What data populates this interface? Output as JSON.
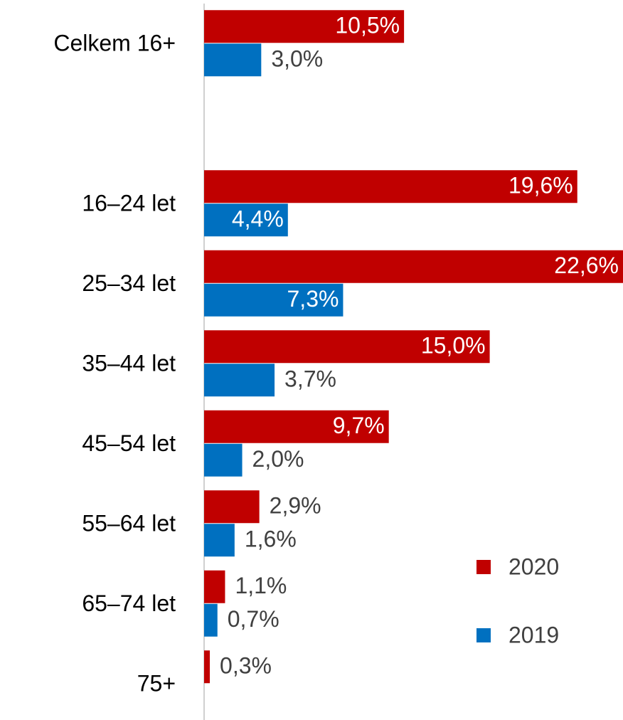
{
  "chart_data": {
    "type": "hbar",
    "categories": [
      "Celkem 16+",
      null,
      "16–24 let",
      "25–34 let",
      "35–44 let",
      "45–54 let",
      "55–64 let",
      "65–74 let",
      "75+"
    ],
    "series": [
      {
        "name": "2020",
        "color": "#c00000",
        "values": [
          10.5,
          null,
          19.6,
          22.6,
          15.0,
          9.7,
          2.9,
          1.1,
          0.3
        ],
        "value_labels": [
          "10,5%",
          null,
          "19,6%",
          "22,6%",
          "15,0%",
          "9,7%",
          "2,9%",
          "1,1%",
          "0,3%"
        ]
      },
      {
        "name": "2019",
        "color": "#0070c0",
        "values": [
          3.0,
          null,
          4.4,
          7.3,
          3.7,
          2.0,
          1.6,
          0.7,
          null
        ],
        "value_labels": [
          "3,0%",
          null,
          "4,4%",
          "7,3%",
          "3,7%",
          "2,0%",
          "1,6%",
          "0,7%",
          null
        ]
      }
    ],
    "xlim": [
      0,
      22
    ],
    "legend": "lower right"
  }
}
